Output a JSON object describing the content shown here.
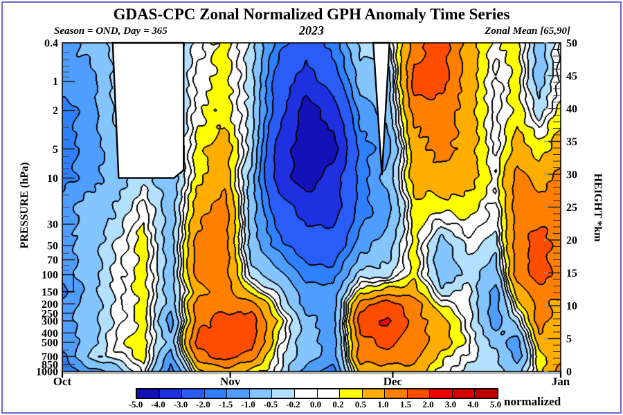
{
  "header": {
    "title": "GDAS-CPC Zonal Normalized GPH Anomaly Time Series",
    "season_label": "Season = OND, Day = 365",
    "year": "2023",
    "zonal_mean_label": "Zonal Mean [65,90]"
  },
  "axes": {
    "y_left": {
      "label": "PRESSURE (hPa)",
      "ticks": [
        0.4,
        1,
        2,
        5,
        10,
        30,
        50,
        70,
        100,
        150,
        200,
        250,
        300,
        400,
        500,
        700,
        850,
        1000
      ],
      "minor_ticks": [
        0.5,
        0.6,
        0.7,
        0.8,
        0.9,
        3,
        4,
        6,
        7,
        8,
        9,
        15,
        20,
        25,
        40,
        60,
        80,
        90,
        600,
        800,
        900
      ],
      "marker_box": {
        "from": 100,
        "to": 150
      }
    },
    "y_right": {
      "label": "HEIGHT *km",
      "ticks": [
        0,
        5,
        10,
        15,
        20,
        25,
        30,
        35,
        40,
        45,
        50
      ],
      "minor_step": 1,
      "km_max": 50
    },
    "x": {
      "months": [
        {
          "label": "Oct",
          "day": 0
        },
        {
          "label": "Nov",
          "day": 31
        },
        {
          "label": "Dec",
          "day": 61
        },
        {
          "label": "Jan",
          "day": 92
        }
      ]
    }
  },
  "colorbar": {
    "boundaries": [
      "-5.0",
      "-4.0",
      "-3.0",
      "-2.0",
      "-1.5",
      "-1.0",
      "-0.5",
      "-0.2",
      "0.0",
      "0.2",
      "0.5",
      "1.0",
      "1.5",
      "2.0",
      "3.0",
      "4.0",
      "5.0"
    ],
    "unit_label": "normalized"
  },
  "chart_data": {
    "type": "heatmap",
    "style": "filled_contour",
    "title": "GDAS-CPC Zonal Normalized GPH Anomaly Time Series",
    "value_unit": "normalized",
    "y_scale": "log",
    "y_range": [
      0.4,
      1000
    ],
    "x_domain_days": [
      0,
      92
    ],
    "x_days": [
      0,
      5,
      10,
      15,
      20,
      25,
      30,
      35,
      40,
      45,
      50,
      55,
      60,
      65,
      70,
      75,
      80,
      84,
      88,
      92
    ],
    "pressure_levels": [
      0.4,
      1,
      2,
      5,
      10,
      20,
      50,
      100,
      150,
      200,
      300,
      500,
      700,
      1000
    ],
    "contour_levels": [
      -5,
      -4,
      -3,
      -2,
      -1.5,
      -1,
      -0.5,
      -0.2,
      0,
      0.2,
      0.5,
      1,
      1.5,
      2,
      3,
      4,
      5
    ],
    "fill_colors": [
      "#1212b8",
      "#1f30e0",
      "#2a5cf8",
      "#2e80ff",
      "#4f9eff",
      "#84c4ff",
      "#b4e0ff",
      "#ffffff",
      "#ffffff",
      "#ffff00",
      "#ffae00",
      "#ff7f00",
      "#ff4d00",
      "#ee0000",
      "#d60000",
      "#bb0000"
    ],
    "values": [
      [
        -1.25,
        -1.25,
        -1.75,
        -1.75,
        -1.75,
        -1.25,
        -1.25,
        -1.25,
        -1.75,
        -1.25,
        -1.25,
        -1.25,
        -1.75,
        -1.75
      ],
      [
        -0.75,
        -1.25,
        -1.25,
        -1.25,
        -1.25,
        -0.75,
        -0.75,
        -0.75,
        -0.75,
        -0.75,
        -0.75,
        -0.75,
        -0.35,
        -1.25
      ],
      [
        -0.35,
        -0.35,
        -0.35,
        -0.75,
        -0.75,
        -0.5,
        -0.15,
        -0.1,
        -0.1,
        -0.1,
        -0.1,
        0.1,
        -0.1,
        -0.75
      ],
      [
        -0.35,
        -0.35,
        -0.35,
        -0.35,
        -0.35,
        0.1,
        0.35,
        0.35,
        0.35,
        0.35,
        0.35,
        0.35,
        0.35,
        0.1
      ],
      [
        -0.75,
        -0.75,
        -0.75,
        -0.75,
        -0.75,
        -0.75,
        -0.75,
        -0.75,
        -0.75,
        -0.75,
        -1.25,
        -0.75,
        -1.25,
        -1.75
      ],
      [
        -0.1,
        0.1,
        0.1,
        0.35,
        0.35,
        0.75,
        1.25,
        1.25,
        0.75,
        1.25,
        1.25,
        1.75,
        1.25,
        0.35
      ],
      [
        0.35,
        0.35,
        0.35,
        0.75,
        0.75,
        1.25,
        1.25,
        1.25,
        1.25,
        1.25,
        1.75,
        1.75,
        1.75,
        0.75
      ],
      [
        -0.35,
        -0.35,
        -0.35,
        -0.35,
        -0.75,
        -0.75,
        -0.75,
        -0.35,
        0.35,
        1.25,
        1.75,
        1.75,
        1.25,
        0.35
      ],
      [
        -1.75,
        -2.5,
        -2.5,
        -3.5,
        -3.5,
        -2.5,
        -1.75,
        -0.75,
        -0.35,
        -0.1,
        0.35,
        0.1,
        -0.1,
        -0.1
      ],
      [
        -2.5,
        -3.5,
        -4.5,
        -4.5,
        -4.5,
        -3.5,
        -2.5,
        -1.75,
        -1.25,
        -1.25,
        -0.75,
        -0.75,
        -0.75,
        -1.25
      ],
      [
        -1.75,
        -2.5,
        -3.5,
        -4.5,
        -3.5,
        -3.5,
        -2.5,
        -1.75,
        -1.25,
        -1.25,
        -1.25,
        -1.25,
        -1.25,
        -1.75
      ],
      [
        -0.35,
        -0.75,
        -1.25,
        -1.75,
        -1.75,
        -1.75,
        -1.25,
        -0.35,
        0.35,
        1.25,
        1.75,
        1.25,
        1.25,
        0.75
      ],
      [
        -0.35,
        -0.75,
        -0.75,
        -1.25,
        -0.75,
        -1.25,
        -0.75,
        -0.35,
        0.75,
        1.75,
        2.1,
        1.75,
        1.25,
        0.75
      ],
      [
        1.25,
        1.75,
        1.25,
        0.75,
        0.75,
        0.35,
        0.35,
        0.35,
        0.75,
        1.25,
        1.25,
        1.25,
        1.25,
        0.75
      ],
      [
        1.75,
        1.75,
        1.25,
        1.25,
        0.75,
        0.35,
        -0.75,
        -0.75,
        -0.35,
        0.1,
        0.75,
        0.75,
        0.35,
        0.1
      ],
      [
        0.75,
        0.75,
        0.75,
        0.75,
        0.75,
        0.35,
        -0.1,
        -0.35,
        -0.1,
        -0.1,
        -0.1,
        0.1,
        -0.1,
        -0.35
      ],
      [
        0.1,
        -0.1,
        -0.1,
        -0.1,
        0.1,
        -0.1,
        -0.35,
        -0.75,
        -1.25,
        -1.25,
        -1.25,
        -0.75,
        -0.35,
        -0.35
      ],
      [
        0.35,
        0.35,
        0.35,
        0.75,
        1.25,
        1.25,
        1.25,
        1.25,
        0.75,
        0.35,
        -0.35,
        -1.25,
        -1.25,
        -0.75
      ],
      [
        -0.75,
        -0.75,
        -0.35,
        0.35,
        0.75,
        1.25,
        1.75,
        1.75,
        1.25,
        1.25,
        1.25,
        0.75,
        0.35,
        0.35
      ],
      [
        0.1,
        0.1,
        0.35,
        0.75,
        1.25,
        1.25,
        1.25,
        1.25,
        1.25,
        0.75,
        0.75,
        0.75,
        0.75,
        1.25
      ]
    ],
    "missing_regions": [
      {
        "points": [
          [
            9.3,
            0.4
          ],
          [
            22.4,
            0.4
          ],
          [
            22.4,
            8.3
          ],
          [
            20.6,
            10.0
          ],
          [
            10.4,
            10.0
          ]
        ]
      },
      {
        "points": [
          [
            57.4,
            0.4
          ],
          [
            60.4,
            0.4
          ],
          [
            59.0,
            9.3
          ]
        ]
      }
    ]
  }
}
